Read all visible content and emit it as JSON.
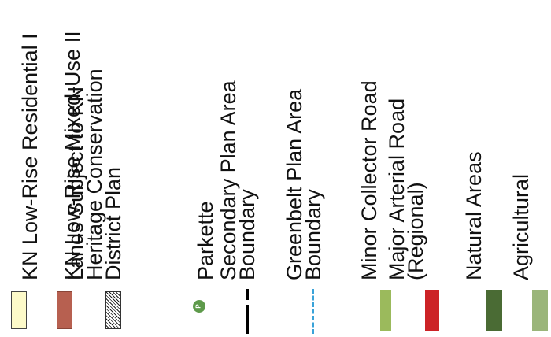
{
  "legend": {
    "items": [
      {
        "label": "KN Low-Rise Residential I",
        "symbol": "fill",
        "color": "#fdfac9"
      },
      {
        "label": "KN Low-Rise Mixed-Use II",
        "symbol": "fill",
        "color": "#b76050"
      },
      {
        "label": "Lands Subject to KN\nHeritage Conservation\nDistrict Plan",
        "symbol": "hatch",
        "color": "#222222"
      },
      {
        "label": "Parkette",
        "symbol": "parkette",
        "color": "#5e9a4b",
        "symbol_text": "P"
      },
      {
        "label": "Secondary Plan Area\nBoundary",
        "symbol": "line",
        "color": "#000000"
      },
      {
        "label": "Greenbelt Plan Area\nBoundary",
        "symbol": "dashed-line",
        "color": "#3aa3d9"
      },
      {
        "label": "Minor Collector Road",
        "symbol": "fill",
        "color": "#9bba5c"
      },
      {
        "label": "Major Arterial Road\n(Regional)",
        "symbol": "fill",
        "color": "#cc2226"
      },
      {
        "label": "Natural Areas",
        "symbol": "fill",
        "color": "#4a6b34"
      },
      {
        "label": "Agricultural",
        "symbol": "fill",
        "color": "#9ab57a"
      }
    ]
  }
}
